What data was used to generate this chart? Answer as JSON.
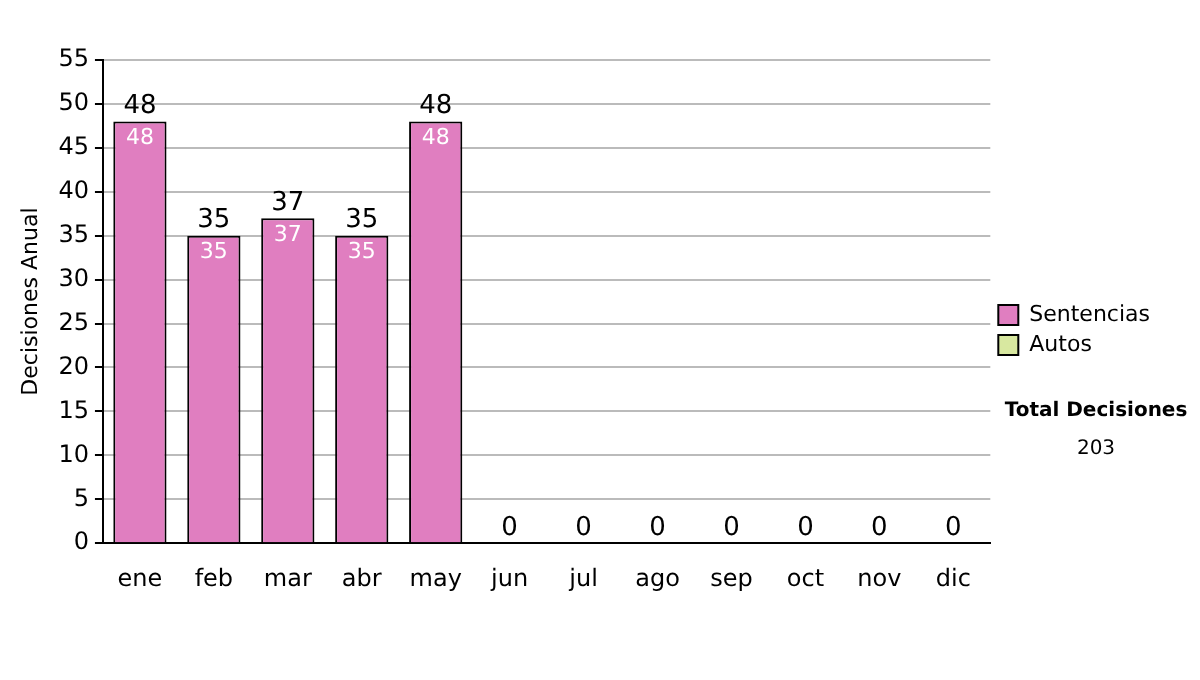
{
  "chart_data": {
    "type": "bar",
    "ylabel": "Decisiones Anual",
    "categories": [
      "ene",
      "feb",
      "mar",
      "abr",
      "may",
      "jun",
      "jul",
      "ago",
      "sep",
      "oct",
      "nov",
      "dic"
    ],
    "series": [
      {
        "name": "Sentencias",
        "color": "#e07ec0",
        "values": [
          48,
          35,
          37,
          35,
          48,
          0,
          0,
          0,
          0,
          0,
          0,
          0
        ],
        "value_labels": [
          "48",
          "35",
          "37",
          "35",
          "48",
          null,
          null,
          null,
          null,
          null,
          null,
          null
        ]
      },
      {
        "name": "Autos",
        "color": "#d8e8a0",
        "values": [
          0,
          0,
          0,
          0,
          0,
          0,
          0,
          0,
          0,
          0,
          0,
          0
        ]
      }
    ],
    "stacked": true,
    "totals": [
      "48",
      "35",
      "37",
      "35",
      "48",
      "0",
      "0",
      "0",
      "0",
      "0",
      "0",
      "0"
    ],
    "ylim": [
      0,
      55
    ],
    "yticks": [
      0,
      5,
      10,
      15,
      20,
      25,
      30,
      35,
      40,
      45,
      50,
      55
    ],
    "grid": "y",
    "legend": "right",
    "annotations": [
      "Total Decisiones",
      "203"
    ]
  }
}
